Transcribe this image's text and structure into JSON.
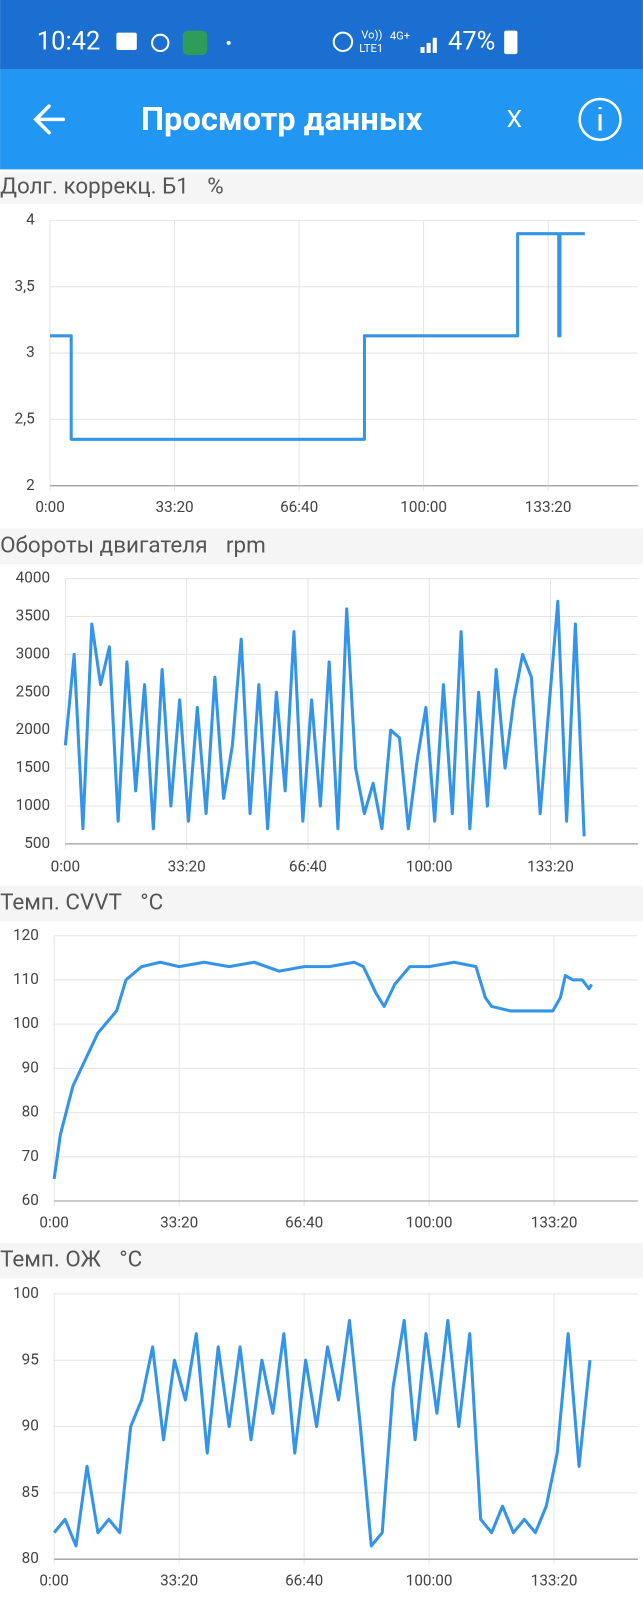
{
  "status_bar": {
    "time": "10:42",
    "battery": "47%",
    "network": "4G+",
    "volte": "Vo))",
    "lte": "LTE1"
  },
  "app_bar": {
    "title": "Просмотр данных",
    "close": "X"
  },
  "chart_data": [
    {
      "type": "line",
      "title": "Долг. коррекц. Б1",
      "unit": "%",
      "color": "#1e88e5",
      "grid": true,
      "x": [
        0,
        340,
        340,
        5050,
        5050,
        7510,
        7510,
        8170,
        8170,
        8190,
        8190,
        8590
      ],
      "values": [
        3.13,
        3.13,
        2.35,
        2.35,
        3.13,
        3.13,
        3.9,
        3.9,
        3.13,
        3.13,
        3.9,
        3.9
      ],
      "xlim": [
        0,
        9440
      ],
      "xticks": [
        {
          "value": 0,
          "label": "0:00"
        },
        {
          "value": 2000,
          "label": "33:20"
        },
        {
          "value": 4000,
          "label": "66:40"
        },
        {
          "value": 6000,
          "label": "100:00"
        },
        {
          "value": 8000,
          "label": "133:20"
        }
      ],
      "ylim": [
        2,
        4
      ],
      "yticks": [
        2,
        {
          "value": 2.5,
          "label": "2,5"
        },
        3,
        {
          "value": 3.5,
          "label": "3,5"
        },
        4
      ]
    },
    {
      "type": "line",
      "title": "Обороты двигателя",
      "unit": "rpm",
      "color": "#1e88e5",
      "grid": true,
      "x": [
        0,
        145,
        290,
        435,
        580,
        725,
        870,
        1015,
        1160,
        1305,
        1450,
        1595,
        1740,
        1885,
        2030,
        2175,
        2320,
        2465,
        2610,
        2755,
        2900,
        3045,
        3190,
        3335,
        3480,
        3625,
        3770,
        3915,
        4060,
        4205,
        4350,
        4495,
        4640,
        4785,
        4930,
        5075,
        5220,
        5365,
        5510,
        5655,
        5800,
        5945,
        6090,
        6235,
        6380,
        6525,
        6670,
        6815,
        6960,
        7105,
        7250,
        7395,
        7540,
        7685,
        7830,
        7975,
        8120,
        8265,
        8410,
        8555
      ],
      "values": [
        1800,
        3000,
        700,
        3400,
        2600,
        3100,
        800,
        2900,
        1200,
        2600,
        700,
        2800,
        1000,
        2400,
        800,
        2300,
        900,
        2700,
        1100,
        1800,
        3200,
        900,
        2600,
        700,
        2500,
        1200,
        3300,
        800,
        2400,
        1000,
        2900,
        700,
        3600,
        1500,
        900,
        1300,
        700,
        2000,
        1900,
        700,
        1600,
        2300,
        800,
        2600,
        900,
        3300,
        700,
        2500,
        1000,
        2800,
        1500,
        2400,
        3000,
        2700,
        900,
        2300,
        3700,
        800,
        3400,
        600
      ],
      "xlim": [
        0,
        9440
      ],
      "xticks": [
        {
          "value": 0,
          "label": "0:00"
        },
        {
          "value": 2000,
          "label": "33:20"
        },
        {
          "value": 4000,
          "label": "66:40"
        },
        {
          "value": 6000,
          "label": "100:00"
        },
        {
          "value": 8000,
          "label": "133:20"
        }
      ],
      "ylim": [
        500,
        4000
      ],
      "yticks": [
        500,
        1000,
        1500,
        2000,
        2500,
        3000,
        3500,
        4000
      ]
    },
    {
      "type": "line",
      "title": "Темп. CVVT",
      "unit": "°C",
      "color": "#1e88e5",
      "grid": true,
      "x": [
        0,
        100,
        300,
        700,
        1000,
        1150,
        1400,
        1700,
        2000,
        2400,
        2800,
        3200,
        3600,
        4000,
        4400,
        4800,
        4950,
        5150,
        5280,
        5450,
        5690,
        6000,
        6400,
        6750,
        6900,
        7000,
        7300,
        7600,
        7980,
        8100,
        8180,
        8300,
        8450,
        8560,
        8600
      ],
      "values": [
        65,
        75,
        86,
        98,
        103,
        110,
        113,
        114,
        113,
        114,
        113,
        114,
        112,
        113,
        113,
        114,
        113,
        107,
        104,
        109,
        113,
        113,
        114,
        113,
        106,
        104,
        103,
        103,
        103,
        106,
        111,
        110,
        110,
        108,
        109
      ],
      "xlim": [
        0,
        9340
      ],
      "xticks": [
        {
          "value": 0,
          "label": "0:00"
        },
        {
          "value": 2000,
          "label": "33:20"
        },
        {
          "value": 4000,
          "label": "66:40"
        },
        {
          "value": 6000,
          "label": "100:00"
        },
        {
          "value": 8000,
          "label": "133:20"
        }
      ],
      "ylim": [
        60,
        120
      ],
      "yticks": [
        60,
        70,
        80,
        90,
        100,
        110,
        120
      ]
    },
    {
      "type": "line",
      "title": "Темп. ОЖ",
      "unit": "°C",
      "color": "#1e88e5",
      "grid": true,
      "x": [
        0,
        175,
        350,
        525,
        700,
        875,
        1050,
        1225,
        1400,
        1575,
        1750,
        1925,
        2100,
        2275,
        2450,
        2625,
        2800,
        2975,
        3150,
        3325,
        3500,
        3675,
        3850,
        4025,
        4200,
        4375,
        4550,
        4725,
        4900,
        5075,
        5250,
        5425,
        5600,
        5775,
        5950,
        6125,
        6300,
        6475,
        6650,
        6825,
        7000,
        7175,
        7350,
        7525,
        7700,
        7875,
        8050,
        8225,
        8400,
        8575
      ],
      "values": [
        82,
        83,
        81,
        87,
        82,
        83,
        82,
        90,
        92,
        96,
        89,
        95,
        92,
        97,
        88,
        96,
        90,
        96,
        89,
        95,
        91,
        97,
        88,
        95,
        90,
        96,
        92,
        98,
        90,
        81,
        82,
        93,
        98,
        89,
        97,
        91,
        98,
        90,
        97,
        83,
        82,
        84,
        82,
        83,
        82,
        84,
        88,
        97,
        87,
        95
      ],
      "xlim": [
        0,
        9340
      ],
      "xticks": [
        {
          "value": 0,
          "label": "0:00"
        },
        {
          "value": 2000,
          "label": "33:20"
        },
        {
          "value": 4000,
          "label": "66:40"
        },
        {
          "value": 6000,
          "label": "100:00"
        },
        {
          "value": 8000,
          "label": "133:20"
        }
      ],
      "ylim": [
        80,
        100
      ],
      "yticks": [
        80,
        85,
        90,
        95,
        100
      ]
    }
  ]
}
